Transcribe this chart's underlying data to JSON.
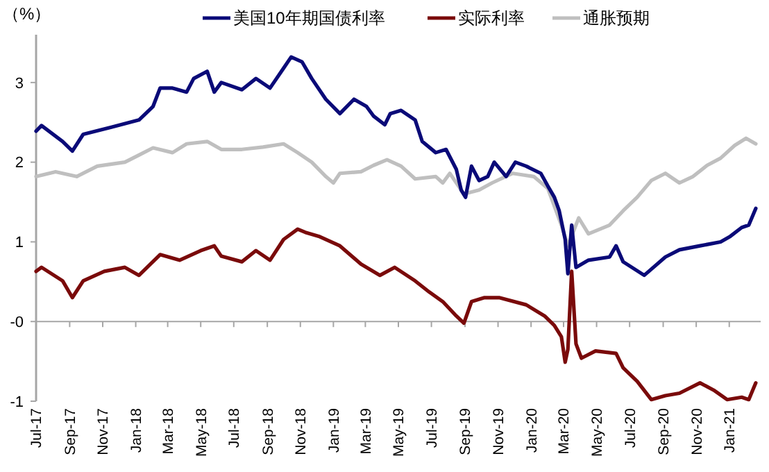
{
  "chart_data": {
    "type": "line",
    "ylabel": "（%）",
    "legend": "top",
    "line_style": "solid",
    "marker": "none",
    "xlim": [
      "2017-07-01",
      "2021-02-28"
    ],
    "ylim": [
      -1,
      3.6
    ],
    "yticks": [
      {
        "value": -1,
        "label": "-1"
      },
      {
        "value": 0,
        "label": "-0"
      },
      1,
      2,
      3
    ],
    "xticks": [
      {
        "value": "2017-07-01",
        "label": "Jul-17"
      },
      {
        "value": "2017-09-01",
        "label": "Sep-17"
      },
      {
        "value": "2017-11-01",
        "label": "Nov-17"
      },
      {
        "value": "2018-01-01",
        "label": "Jan-18"
      },
      {
        "value": "2018-03-01",
        "label": "Mar-18"
      },
      {
        "value": "2018-05-01",
        "label": "May-18"
      },
      {
        "value": "2018-07-01",
        "label": "Jul-18"
      },
      {
        "value": "2018-09-01",
        "label": "Sep-18"
      },
      {
        "value": "2018-11-01",
        "label": "Nov-18"
      },
      {
        "value": "2019-01-01",
        "label": "Jan-19"
      },
      {
        "value": "2019-03-01",
        "label": "Mar-19"
      },
      {
        "value": "2019-05-01",
        "label": "May-19"
      },
      {
        "value": "2019-07-01",
        "label": "Jul-19"
      },
      {
        "value": "2019-09-01",
        "label": "Sep-19"
      },
      {
        "value": "2019-11-01",
        "label": "Nov-19"
      },
      {
        "value": "2020-01-01",
        "label": "Jan-20"
      },
      {
        "value": "2020-03-01",
        "label": "Mar-20"
      },
      {
        "value": "2020-05-01",
        "label": "May-20"
      },
      {
        "value": "2020-07-01",
        "label": "Jul-20"
      },
      {
        "value": "2020-09-01",
        "label": "Sep-20"
      },
      {
        "value": "2020-11-01",
        "label": "Nov-20"
      },
      {
        "value": "2021-01-01",
        "label": "Jan-21"
      }
    ],
    "series": [
      {
        "name": "美国10年期国债利率",
        "color": "#0a0a78",
        "x": [
          "2017-07-01",
          "2017-07-11",
          "2017-08-19",
          "2017-09-06",
          "2017-09-26",
          "2017-11-17",
          "2018-01-07",
          "2018-02-02",
          "2018-02-15",
          "2018-03-10",
          "2018-04-05",
          "2018-04-18",
          "2018-05-13",
          "2018-05-26",
          "2018-06-08",
          "2018-07-16",
          "2018-08-11",
          "2018-09-06",
          "2018-10-01",
          "2018-10-15",
          "2018-11-04",
          "2018-11-22",
          "2018-12-18",
          "2019-01-13",
          "2019-02-08",
          "2019-03-03",
          "2019-03-16",
          "2019-04-06",
          "2019-04-16",
          "2019-05-06",
          "2019-06-01",
          "2019-06-14",
          "2019-07-09",
          "2019-07-28",
          "2019-08-16",
          "2019-08-25",
          "2019-09-02",
          "2019-09-13",
          "2019-09-27",
          "2019-10-13",
          "2019-10-25",
          "2019-11-16",
          "2019-12-03",
          "2019-12-23",
          "2020-01-19",
          "2020-02-01",
          "2020-02-13",
          "2020-02-22",
          "2020-03-04",
          "2020-03-09",
          "2020-03-16",
          "2020-03-24",
          "2020-04-16",
          "2020-05-25",
          "2020-06-06",
          "2020-06-19",
          "2020-07-28",
          "2020-09-05",
          "2020-10-01",
          "2020-11-08",
          "2020-12-16",
          "2021-01-03",
          "2021-01-24",
          "2021-02-06",
          "2021-02-19"
        ],
        "values": [
          2.39,
          2.46,
          2.26,
          2.14,
          2.35,
          2.44,
          2.53,
          2.7,
          2.93,
          2.93,
          2.88,
          3.05,
          3.14,
          2.88,
          3.0,
          2.91,
          3.05,
          2.93,
          3.18,
          3.32,
          3.26,
          3.05,
          2.79,
          2.61,
          2.79,
          2.7,
          2.58,
          2.47,
          2.61,
          2.65,
          2.53,
          2.26,
          2.12,
          2.16,
          1.91,
          1.65,
          1.56,
          1.95,
          1.77,
          1.82,
          2.0,
          1.82,
          2.0,
          1.95,
          1.86,
          1.7,
          1.56,
          1.39,
          1.03,
          0.6,
          1.21,
          0.68,
          0.77,
          0.81,
          0.95,
          0.75,
          0.58,
          0.81,
          0.9,
          0.95,
          1.0,
          1.07,
          1.18,
          1.21,
          1.42
        ]
      },
      {
        "name": "实际利率",
        "color": "#7a0a0a",
        "x": [
          "2017-07-01",
          "2017-07-11",
          "2017-08-19",
          "2017-09-06",
          "2017-09-26",
          "2017-11-04",
          "2017-12-12",
          "2018-01-07",
          "2018-02-15",
          "2018-03-23",
          "2018-05-01",
          "2018-05-26",
          "2018-06-08",
          "2018-07-16",
          "2018-08-11",
          "2018-09-06",
          "2018-10-01",
          "2018-10-27",
          "2018-11-10",
          "2018-12-05",
          "2019-01-13",
          "2019-02-21",
          "2019-03-28",
          "2019-04-24",
          "2019-06-01",
          "2019-06-27",
          "2019-07-22",
          "2019-08-16",
          "2019-08-30",
          "2019-09-13",
          "2019-10-07",
          "2019-11-03",
          "2019-12-23",
          "2020-01-26",
          "2020-02-13",
          "2020-02-26",
          "2020-03-04",
          "2020-03-09",
          "2020-03-16",
          "2020-03-24",
          "2020-04-03",
          "2020-04-29",
          "2020-06-06",
          "2020-06-19",
          "2020-07-15",
          "2020-08-10",
          "2020-09-05",
          "2020-10-01",
          "2020-11-08",
          "2020-12-03",
          "2020-12-28",
          "2021-01-24",
          "2021-02-06",
          "2021-02-19"
        ],
        "values": [
          0.63,
          0.68,
          0.51,
          0.3,
          0.51,
          0.63,
          0.68,
          0.58,
          0.84,
          0.77,
          0.89,
          0.95,
          0.82,
          0.75,
          0.89,
          0.77,
          1.03,
          1.16,
          1.12,
          1.07,
          0.95,
          0.72,
          0.58,
          0.68,
          0.51,
          0.37,
          0.25,
          0.07,
          -0.02,
          0.25,
          0.3,
          0.3,
          0.21,
          0.07,
          -0.05,
          -0.19,
          -0.51,
          -0.35,
          0.63,
          -0.28,
          -0.46,
          -0.37,
          -0.4,
          -0.58,
          -0.75,
          -0.98,
          -0.93,
          -0.9,
          -0.77,
          -0.86,
          -0.98,
          -0.95,
          -0.98,
          -0.77
        ]
      },
      {
        "name": "通胀预期",
        "color": "#bfbfbf",
        "x": [
          "2017-07-01",
          "2017-08-06",
          "2017-09-14",
          "2017-10-22",
          "2017-12-12",
          "2018-01-07",
          "2018-02-02",
          "2018-03-10",
          "2018-04-05",
          "2018-05-13",
          "2018-06-08",
          "2018-07-16",
          "2018-08-24",
          "2018-10-01",
          "2018-10-27",
          "2018-11-22",
          "2018-12-18",
          "2019-01-01",
          "2019-01-13",
          "2019-02-21",
          "2019-03-16",
          "2019-04-10",
          "2019-05-06",
          "2019-06-01",
          "2019-07-09",
          "2019-07-22",
          "2019-08-04",
          "2019-08-30",
          "2019-09-27",
          "2019-10-21",
          "2019-11-28",
          "2020-01-06",
          "2020-02-01",
          "2020-02-26",
          "2020-03-09",
          "2020-03-29",
          "2020-04-16",
          "2020-05-25",
          "2020-06-19",
          "2020-07-15",
          "2020-08-10",
          "2020-09-05",
          "2020-10-01",
          "2020-10-26",
          "2020-11-21",
          "2020-12-16",
          "2021-01-11",
          "2021-02-01",
          "2021-02-19"
        ],
        "values": [
          1.82,
          1.88,
          1.82,
          1.95,
          2.0,
          2.09,
          2.18,
          2.12,
          2.23,
          2.26,
          2.16,
          2.16,
          2.19,
          2.23,
          2.12,
          2.0,
          1.82,
          1.74,
          1.86,
          1.88,
          1.96,
          2.03,
          1.95,
          1.79,
          1.82,
          1.74,
          1.86,
          1.6,
          1.65,
          1.74,
          1.86,
          1.82,
          1.67,
          1.21,
          0.95,
          1.3,
          1.1,
          1.21,
          1.39,
          1.56,
          1.77,
          1.86,
          1.74,
          1.82,
          1.96,
          2.05,
          2.21,
          2.3,
          2.23
        ]
      }
    ]
  }
}
